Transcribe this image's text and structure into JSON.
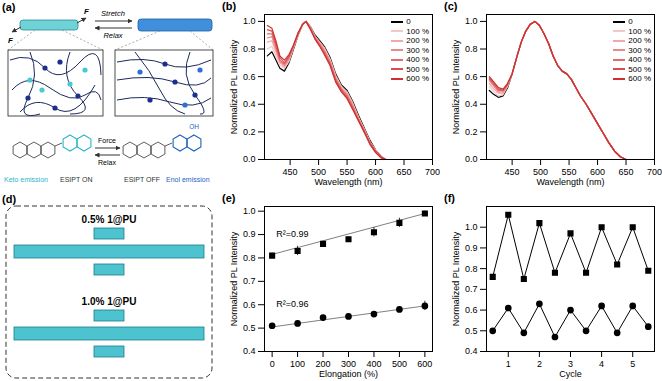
{
  "diagram": {
    "title": "(a)",
    "top": {
      "forces": [
        "F",
        "F"
      ],
      "forward": "Stretch",
      "backward": "Relax"
    },
    "bottom": {
      "forward": "Force",
      "backward": "Relax",
      "right_group": "OH",
      "left_state": "ESIPT ON",
      "right_state": "ESIPT OFF",
      "left_emission": "Keto emission",
      "right_emission": "Enol emission"
    }
  },
  "photos": {
    "title": "(d)",
    "samples": [
      "0.5% 1@PU",
      "1.0% 1@PU"
    ]
  },
  "chart_data": [
    {
      "title": "(b)",
      "type": "line",
      "x_label": "Wavelength (nm)",
      "y_label": "Normalized PL Intensity",
      "x": [
        410,
        418,
        425,
        432,
        440,
        448,
        456,
        464,
        472,
        478,
        486,
        494,
        502,
        510,
        520,
        530,
        540,
        550,
        560,
        570,
        580,
        590,
        600,
        610,
        618
      ],
      "xlim": [
        405,
        700
      ],
      "xticks": [
        450,
        500,
        550,
        600,
        650,
        700
      ],
      "ylim": [
        0,
        1.05
      ],
      "yticks": [
        {
          "value": 0,
          "label": "0.0"
        },
        0.2,
        0.4,
        0.6,
        0.8,
        {
          "value": 1,
          "label": "1.0"
        }
      ],
      "legend": "top-right",
      "series": [
        {
          "name": "0",
          "color": "#000000",
          "values": [
            0.75,
            0.78,
            0.72,
            0.66,
            0.64,
            0.7,
            0.8,
            0.9,
            0.98,
            1.0,
            0.96,
            0.9,
            0.86,
            0.82,
            0.74,
            0.62,
            0.54,
            0.5,
            0.42,
            0.32,
            0.23,
            0.14,
            0.07,
            0.02,
            0.0
          ]
        },
        {
          "name": "100 %",
          "color": "#f7c6c6",
          "values": [
            0.8,
            0.82,
            0.75,
            0.68,
            0.66,
            0.71,
            0.81,
            0.9,
            0.98,
            1.0,
            0.96,
            0.89,
            0.85,
            0.81,
            0.73,
            0.61,
            0.53,
            0.49,
            0.41,
            0.31,
            0.22,
            0.13,
            0.07,
            0.02,
            0.0
          ]
        },
        {
          "name": "200 %",
          "color": "#f0a8a8",
          "values": [
            0.85,
            0.86,
            0.78,
            0.7,
            0.67,
            0.72,
            0.81,
            0.9,
            0.98,
            1.0,
            0.95,
            0.89,
            0.85,
            0.8,
            0.72,
            0.6,
            0.52,
            0.48,
            0.4,
            0.3,
            0.22,
            0.13,
            0.06,
            0.02,
            0.0
          ]
        },
        {
          "name": "300 %",
          "color": "#e88a8a",
          "values": [
            0.88,
            0.89,
            0.8,
            0.71,
            0.68,
            0.73,
            0.82,
            0.91,
            0.98,
            1.0,
            0.95,
            0.88,
            0.84,
            0.79,
            0.71,
            0.59,
            0.51,
            0.47,
            0.39,
            0.3,
            0.21,
            0.12,
            0.06,
            0.02,
            0.0
          ]
        },
        {
          "name": "400 %",
          "color": "#e06c6c",
          "values": [
            0.91,
            0.91,
            0.82,
            0.72,
            0.69,
            0.74,
            0.82,
            0.91,
            0.98,
            1.0,
            0.95,
            0.88,
            0.83,
            0.78,
            0.7,
            0.58,
            0.51,
            0.46,
            0.38,
            0.29,
            0.21,
            0.12,
            0.06,
            0.02,
            0.0
          ]
        },
        {
          "name": "500 %",
          "color": "#d84e4e",
          "values": [
            0.94,
            0.93,
            0.84,
            0.74,
            0.7,
            0.75,
            0.83,
            0.91,
            0.98,
            1.0,
            0.94,
            0.87,
            0.82,
            0.77,
            0.69,
            0.57,
            0.5,
            0.45,
            0.37,
            0.28,
            0.2,
            0.12,
            0.06,
            0.02,
            0.0
          ]
        },
        {
          "name": "600 %",
          "color": "#d03030",
          "values": [
            0.97,
            0.95,
            0.86,
            0.75,
            0.72,
            0.76,
            0.83,
            0.92,
            0.98,
            1.0,
            0.94,
            0.87,
            0.82,
            0.76,
            0.68,
            0.56,
            0.49,
            0.44,
            0.36,
            0.28,
            0.2,
            0.11,
            0.05,
            0.01,
            0.0
          ]
        }
      ]
    },
    {
      "title": "(c)",
      "type": "line",
      "x_label": "Wavelength (nm)",
      "y_label": "Normalized PL Intensity",
      "x": [
        410,
        418,
        426,
        434,
        442,
        450,
        458,
        466,
        474,
        482,
        490,
        498,
        506,
        514,
        522,
        530,
        538,
        546,
        554,
        562,
        570,
        580,
        590,
        600,
        610,
        620,
        630,
        640,
        650
      ],
      "xlim": [
        405,
        700
      ],
      "xticks": [
        450,
        500,
        550,
        600,
        650,
        700
      ],
      "ylim": [
        0,
        1.05
      ],
      "yticks": [
        {
          "value": 0,
          "label": "0.0"
        },
        0.2,
        0.4,
        0.6,
        0.8,
        {
          "value": 1,
          "label": "1.0"
        }
      ],
      "legend": "top-right",
      "series": [
        {
          "name": "0",
          "color": "#000000",
          "values": [
            0.5,
            0.47,
            0.45,
            0.46,
            0.52,
            0.62,
            0.74,
            0.85,
            0.93,
            0.98,
            1.0,
            0.97,
            0.91,
            0.84,
            0.75,
            0.68,
            0.64,
            0.62,
            0.58,
            0.52,
            0.46,
            0.4,
            0.33,
            0.26,
            0.19,
            0.12,
            0.06,
            0.02,
            0.0
          ]
        },
        {
          "name": "100 %",
          "color": "#f7c6c6",
          "values": [
            0.53,
            0.49,
            0.46,
            0.47,
            0.53,
            0.62,
            0.74,
            0.85,
            0.93,
            0.98,
            1.0,
            0.97,
            0.91,
            0.84,
            0.75,
            0.68,
            0.64,
            0.62,
            0.58,
            0.52,
            0.46,
            0.4,
            0.33,
            0.26,
            0.19,
            0.12,
            0.06,
            0.02,
            0.0
          ]
        },
        {
          "name": "200 %",
          "color": "#f0a8a8",
          "values": [
            0.55,
            0.51,
            0.48,
            0.48,
            0.53,
            0.62,
            0.74,
            0.85,
            0.93,
            0.98,
            1.0,
            0.97,
            0.91,
            0.84,
            0.75,
            0.68,
            0.64,
            0.62,
            0.58,
            0.52,
            0.46,
            0.4,
            0.33,
            0.26,
            0.19,
            0.12,
            0.06,
            0.02,
            0.0
          ]
        },
        {
          "name": "300 %",
          "color": "#e88a8a",
          "values": [
            0.57,
            0.53,
            0.49,
            0.49,
            0.54,
            0.62,
            0.74,
            0.85,
            0.93,
            0.98,
            1.0,
            0.97,
            0.91,
            0.84,
            0.75,
            0.68,
            0.64,
            0.62,
            0.58,
            0.52,
            0.46,
            0.4,
            0.33,
            0.26,
            0.19,
            0.12,
            0.06,
            0.02,
            0.0
          ]
        },
        {
          "name": "400 %",
          "color": "#e06c6c",
          "values": [
            0.58,
            0.54,
            0.5,
            0.5,
            0.54,
            0.62,
            0.74,
            0.85,
            0.93,
            0.98,
            1.0,
            0.97,
            0.91,
            0.84,
            0.75,
            0.68,
            0.64,
            0.62,
            0.58,
            0.52,
            0.46,
            0.4,
            0.33,
            0.26,
            0.19,
            0.12,
            0.06,
            0.02,
            0.0
          ]
        },
        {
          "name": "500 %",
          "color": "#d84e4e",
          "values": [
            0.59,
            0.55,
            0.51,
            0.5,
            0.55,
            0.62,
            0.74,
            0.85,
            0.93,
            0.98,
            1.0,
            0.97,
            0.91,
            0.84,
            0.75,
            0.68,
            0.64,
            0.62,
            0.58,
            0.52,
            0.46,
            0.4,
            0.33,
            0.26,
            0.19,
            0.12,
            0.06,
            0.02,
            0.0
          ]
        },
        {
          "name": "600 %",
          "color": "#d03030",
          "values": [
            0.6,
            0.56,
            0.52,
            0.51,
            0.55,
            0.62,
            0.74,
            0.85,
            0.93,
            0.98,
            1.0,
            0.97,
            0.91,
            0.84,
            0.75,
            0.68,
            0.64,
            0.62,
            0.58,
            0.52,
            0.46,
            0.4,
            0.33,
            0.26,
            0.19,
            0.12,
            0.06,
            0.02,
            0.0
          ]
        }
      ]
    },
    {
      "title": "(e)",
      "type": "scatter",
      "x_label": "Elongation (%)",
      "y_label": "Normalized PL Intensity",
      "x": [
        0,
        100,
        200,
        300,
        400,
        500,
        600
      ],
      "xlim": [
        -30,
        630
      ],
      "xticks": [
        0,
        100,
        200,
        300,
        400,
        500,
        600
      ],
      "ylim": [
        0.4,
        1.02
      ],
      "yticks": [
        0.4,
        0.5,
        0.6,
        0.7,
        0.8,
        0.9,
        {
          "value": 1,
          "label": "1.0"
        }
      ],
      "series": [
        {
          "color": "#000000",
          "marker": "square",
          "annotation": "R²=0.99",
          "values": [
            0.81,
            0.83,
            0.86,
            0.88,
            0.91,
            0.95,
            0.99
          ],
          "errors": [
            0.01,
            0.02,
            0.01,
            0.01,
            0.02,
            0.02,
            0.01
          ],
          "fit": {
            "x": [
              0,
              600
            ],
            "values": [
              0.815,
              0.99
            ]
          }
        },
        {
          "color": "#000000",
          "marker": "circle",
          "annotation": "R²=0.96",
          "values": [
            0.51,
            0.52,
            0.545,
            0.55,
            0.56,
            0.58,
            0.595
          ],
          "errors": [
            0.01,
            0.01,
            0.01,
            0.01,
            0.01,
            0.01,
            0.02
          ],
          "fit": {
            "x": [
              0,
              600
            ],
            "values": [
              0.505,
              0.595
            ]
          }
        }
      ]
    },
    {
      "title": "(f)",
      "type": "line",
      "x_label": "Cycle",
      "y_label": "Normalized PL Intensity",
      "x": [
        0.5,
        1,
        1.5,
        2,
        2.5,
        3,
        3.5,
        4,
        4.5,
        5,
        5.5
      ],
      "xlim": [
        0.3,
        5.7
      ],
      "xticks": [
        1,
        2,
        3,
        4,
        5
      ],
      "ylim": [
        0.4,
        1.1
      ],
      "yticks": [
        0.4,
        0.5,
        0.6,
        0.7,
        0.8,
        0.9,
        {
          "value": 1,
          "label": "1.0"
        }
      ],
      "series": [
        {
          "color": "#000000",
          "marker": "square",
          "line_style": "solid",
          "values": [
            0.76,
            1.06,
            0.75,
            1.02,
            0.78,
            0.97,
            0.78,
            1.0,
            0.82,
            1.0,
            0.79
          ]
        },
        {
          "color": "#000000",
          "marker": "circle",
          "line_style": "solid",
          "values": [
            0.5,
            0.61,
            0.49,
            0.63,
            0.47,
            0.6,
            0.5,
            0.62,
            0.49,
            0.62,
            0.52
          ]
        }
      ]
    }
  ]
}
